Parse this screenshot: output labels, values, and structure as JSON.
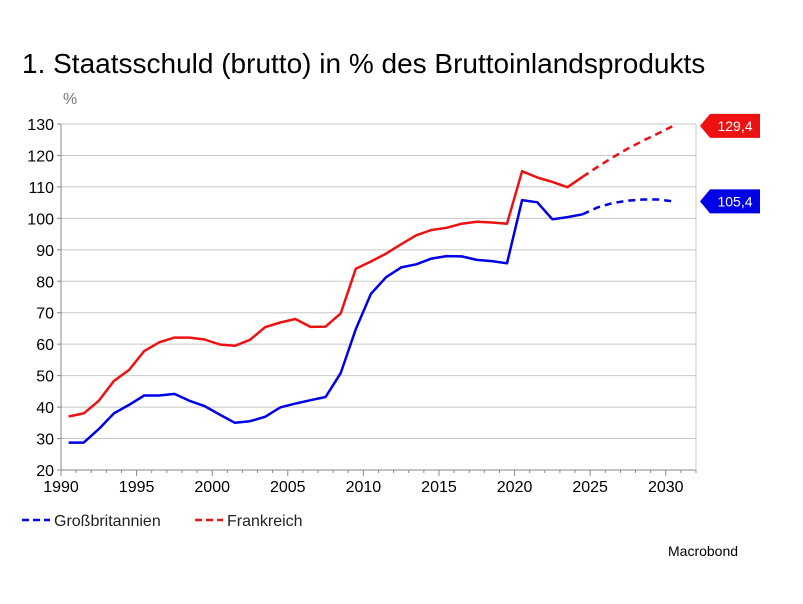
{
  "chart_data": {
    "type": "line",
    "title": "1. Staatsschuld (brutto) in % des Bruttoinlandsprodukts",
    "ylabel": "%",
    "xlabel": "",
    "ylim": [
      20,
      130
    ],
    "xlim": [
      1990,
      2032
    ],
    "yticks": [
      "20",
      "30",
      "40",
      "50",
      "60",
      "70",
      "80",
      "90",
      "100",
      "110",
      "120",
      "130"
    ],
    "xticks": [
      "1990",
      "1995",
      "2000",
      "2005",
      "2010",
      "2015",
      "2020",
      "2025",
      "2030"
    ],
    "grid": true,
    "legend_position": "bottom-left",
    "series": [
      {
        "name": "Großbritannien",
        "color": "#0000e6",
        "values": [
          [
            1990.5,
            28.7
          ],
          [
            1991.5,
            28.7
          ],
          [
            1992.5,
            33
          ],
          [
            1993.5,
            38
          ],
          [
            1994.5,
            40.7
          ],
          [
            1995.5,
            43.7
          ],
          [
            1996.5,
            43.7
          ],
          [
            1997.5,
            44.2
          ],
          [
            1998.5,
            42
          ],
          [
            1999.5,
            40.3
          ],
          [
            2000.5,
            37.6
          ],
          [
            2001.5,
            35
          ],
          [
            2002.5,
            35.5
          ],
          [
            2003.5,
            36.9
          ],
          [
            2004.5,
            39.9
          ],
          [
            2005.5,
            41.1
          ],
          [
            2006.5,
            42.2
          ],
          [
            2007.5,
            43.2
          ],
          [
            2008.5,
            50.8
          ],
          [
            2009.5,
            64.8
          ],
          [
            2010.5,
            76
          ],
          [
            2011.5,
            81.3
          ],
          [
            2012.5,
            84.4
          ],
          [
            2013.5,
            85.4
          ],
          [
            2014.5,
            87.2
          ],
          [
            2015.5,
            88
          ],
          [
            2016.5,
            87.9
          ],
          [
            2017.5,
            86.8
          ],
          [
            2018.5,
            86.4
          ],
          [
            2019.5,
            85.7
          ],
          [
            2020.5,
            105.8
          ],
          [
            2021.5,
            105.1
          ],
          [
            2022.5,
            99.7
          ],
          [
            2023.5,
            100.4
          ],
          [
            2024.5,
            101.3
          ]
        ],
        "forecast": [
          [
            2024.5,
            101.3
          ],
          [
            2025.5,
            103.5
          ],
          [
            2026.5,
            104.9
          ],
          [
            2027.5,
            105.6
          ],
          [
            2028.5,
            106
          ],
          [
            2029.5,
            106
          ],
          [
            2030.5,
            105.4
          ]
        ],
        "end_label": "105,4",
        "end_value": 105.4
      },
      {
        "name": "Frankreich",
        "color": "#ee1111",
        "values": [
          [
            1990.5,
            37
          ],
          [
            1991.5,
            38
          ],
          [
            1992.5,
            42
          ],
          [
            1993.5,
            48.3
          ],
          [
            1994.5,
            51.8
          ],
          [
            1995.5,
            57.8
          ],
          [
            1996.5,
            60.6
          ],
          [
            1997.5,
            62.1
          ],
          [
            1998.5,
            62.1
          ],
          [
            1999.5,
            61.5
          ],
          [
            2000.5,
            59.9
          ],
          [
            2001.5,
            59.5
          ],
          [
            2002.5,
            61.4
          ],
          [
            2003.5,
            65.4
          ],
          [
            2004.5,
            66.9
          ],
          [
            2005.5,
            68
          ],
          [
            2006.5,
            65.5
          ],
          [
            2007.5,
            65.6
          ],
          [
            2008.5,
            69.8
          ],
          [
            2009.5,
            84
          ],
          [
            2010.5,
            86.3
          ],
          [
            2011.5,
            88.8
          ],
          [
            2012.5,
            91.8
          ],
          [
            2013.5,
            94.6
          ],
          [
            2014.5,
            96.3
          ],
          [
            2015.5,
            97
          ],
          [
            2016.5,
            98.3
          ],
          [
            2017.5,
            98.9
          ],
          [
            2018.5,
            98.7
          ],
          [
            2019.5,
            98.3
          ],
          [
            2020.5,
            115
          ],
          [
            2021.5,
            113
          ],
          [
            2022.5,
            111.6
          ],
          [
            2023.5,
            109.9
          ],
          [
            2024.5,
            113.2
          ]
        ],
        "forecast": [
          [
            2024.5,
            113.2
          ],
          [
            2025.5,
            116.4
          ],
          [
            2026.5,
            119.4
          ],
          [
            2027.5,
            122.2
          ],
          [
            2028.5,
            124.7
          ],
          [
            2029.5,
            127
          ],
          [
            2030.5,
            129.4
          ]
        ],
        "end_label": "129,4",
        "end_value": 129.4
      }
    ],
    "source": "Macrobond"
  }
}
